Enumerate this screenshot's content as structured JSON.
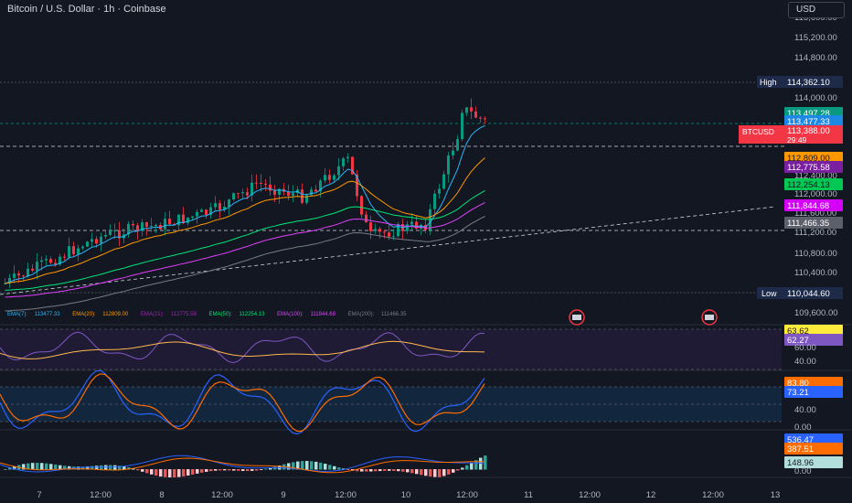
{
  "header": {
    "title": "Bitcoin / U.S. Dollar · 1h · Coinbase",
    "currency": "USD"
  },
  "price_axis": {
    "labels": [
      "115,600.00",
      "115,200.00",
      "114,800.00",
      "114,000.00",
      "112,400.00",
      "112,000.00",
      "111,600.00",
      "111,200.00",
      "110,800.00",
      "110,400.00",
      "109,600.00"
    ]
  },
  "price_tags": {
    "high_label": "High",
    "high_value": "114,362.10",
    "t1": "113,497.28",
    "t2": "113,477.33",
    "symbol": "BTCUSD",
    "last": "113,388.00",
    "countdown": "29:49",
    "ema20": "112,809.00",
    "ema21": "112,775.58",
    "ema50": "112,254.13",
    "ema100": "111,844.68",
    "ema200": "111,466.35",
    "low_label": "Low",
    "low_value": "110,044.60"
  },
  "ema_legend": [
    {
      "name": "EMA(7):",
      "value": "113477.33",
      "color": "#29b6f6"
    },
    {
      "name": "EMA(20):",
      "value": "112809.00",
      "color": "#ff9800"
    },
    {
      "name": "EMA(21):",
      "value": "112775.58",
      "color": "#9c27b0"
    },
    {
      "name": "EMA(50):",
      "value": "112254.13",
      "color": "#00e676"
    },
    {
      "name": "EMA(100):",
      "value": "111844.68",
      "color": "#e040fb"
    },
    {
      "name": "EMA(200):",
      "value": "111466.35",
      "color": "#787b86"
    }
  ],
  "rsi": {
    "v1": "63.62",
    "v2": "62.27",
    "axis": [
      "60.00",
      "40.00"
    ]
  },
  "stoch": {
    "v1": "83.80",
    "v2": "73.21",
    "axis": [
      "40.00",
      "0.00"
    ]
  },
  "macd": {
    "v1": "536.47",
    "v2": "387.51",
    "v3": "148.96",
    "axis": [
      "0.00"
    ]
  },
  "time_axis": [
    "7",
    "12:00",
    "8",
    "12:00",
    "9",
    "12:00",
    "10",
    "12:00",
    "11",
    "12:00",
    "12",
    "12:00",
    "13"
  ],
  "colors": {
    "bg": "#131722",
    "up": "#089981",
    "down": "#f23645",
    "ema7": "#29b6f6",
    "ema20": "#ff9800",
    "ema50": "#00e676",
    "ema100": "#e040fb",
    "ema200": "#787b86"
  }
}
